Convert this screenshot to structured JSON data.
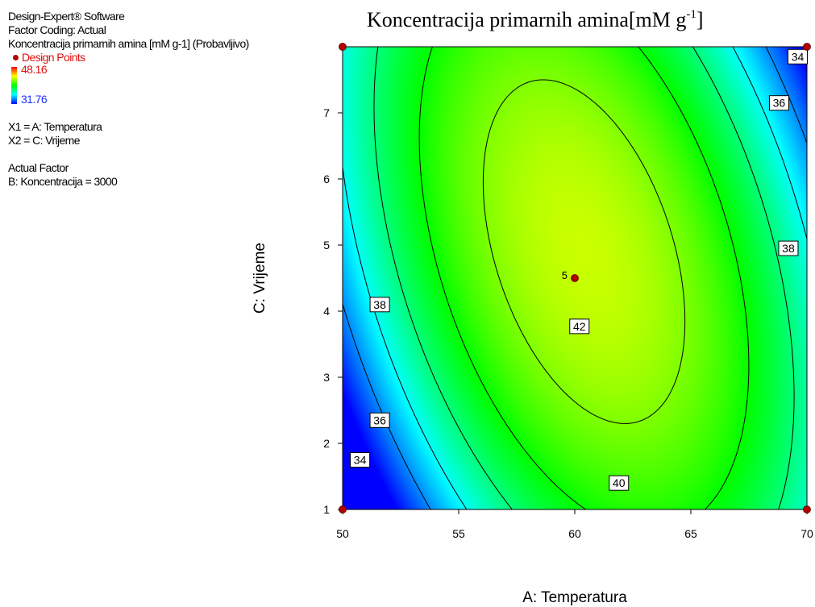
{
  "info": {
    "software": "Design-Expert® Software",
    "coding": "Factor Coding: Actual",
    "response": "Koncentracija primarnih amina [mM g-1] (Probavljivo)",
    "design_points_label": "Design Points",
    "range_high": "48.16",
    "range_low": "31.76",
    "x1": "X1 = A: Temperatura",
    "x2": "X2 = C: Vrijeme",
    "actual_factor_header": "Actual Factor",
    "actual_factor": "B: Koncentracija = 3000"
  },
  "chart_data": {
    "type": "contour",
    "title": "Koncentracija primarnih amina[mM g-1]",
    "title_main": "Koncentracija primarnih amina[mM g",
    "title_sup": "-1",
    "title_end": "]",
    "xlabel": "A: Temperatura",
    "ylabel": "C: Vrijeme",
    "xlim": [
      50,
      70
    ],
    "ylim": [
      1,
      8
    ],
    "x_ticks": [
      "50",
      "55",
      "60",
      "65",
      "70"
    ],
    "y_ticks": [
      "1",
      "2",
      "3",
      "4",
      "5",
      "6",
      "7"
    ],
    "contour_levels": [
      34,
      36,
      38,
      40,
      42
    ],
    "contour_labels": [
      {
        "text": "34",
        "x": 69.6,
        "y": 7.85
      },
      {
        "text": "36",
        "x": 68.8,
        "y": 7.15
      },
      {
        "text": "38",
        "x": 69.2,
        "y": 4.95
      },
      {
        "text": "38",
        "x": 51.6,
        "y": 4.1
      },
      {
        "text": "36",
        "x": 51.6,
        "y": 2.35
      },
      {
        "text": "34",
        "x": 50.75,
        "y": 1.75
      },
      {
        "text": "40",
        "x": 61.9,
        "y": 1.4
      },
      {
        "text": "42",
        "x": 60.2,
        "y": 3.77
      }
    ],
    "design_points": [
      {
        "x": 50,
        "y": 8,
        "label": ""
      },
      {
        "x": 70,
        "y": 8,
        "label": ""
      },
      {
        "x": 50,
        "y": 1,
        "label": ""
      },
      {
        "x": 70,
        "y": 1,
        "label": ""
      },
      {
        "x": 60,
        "y": 4.5,
        "label": "5"
      }
    ],
    "colors": {
      "high": "#ff0000",
      "mid": "#00ff00",
      "low": "#0000ff",
      "point": "#b00000"
    }
  }
}
